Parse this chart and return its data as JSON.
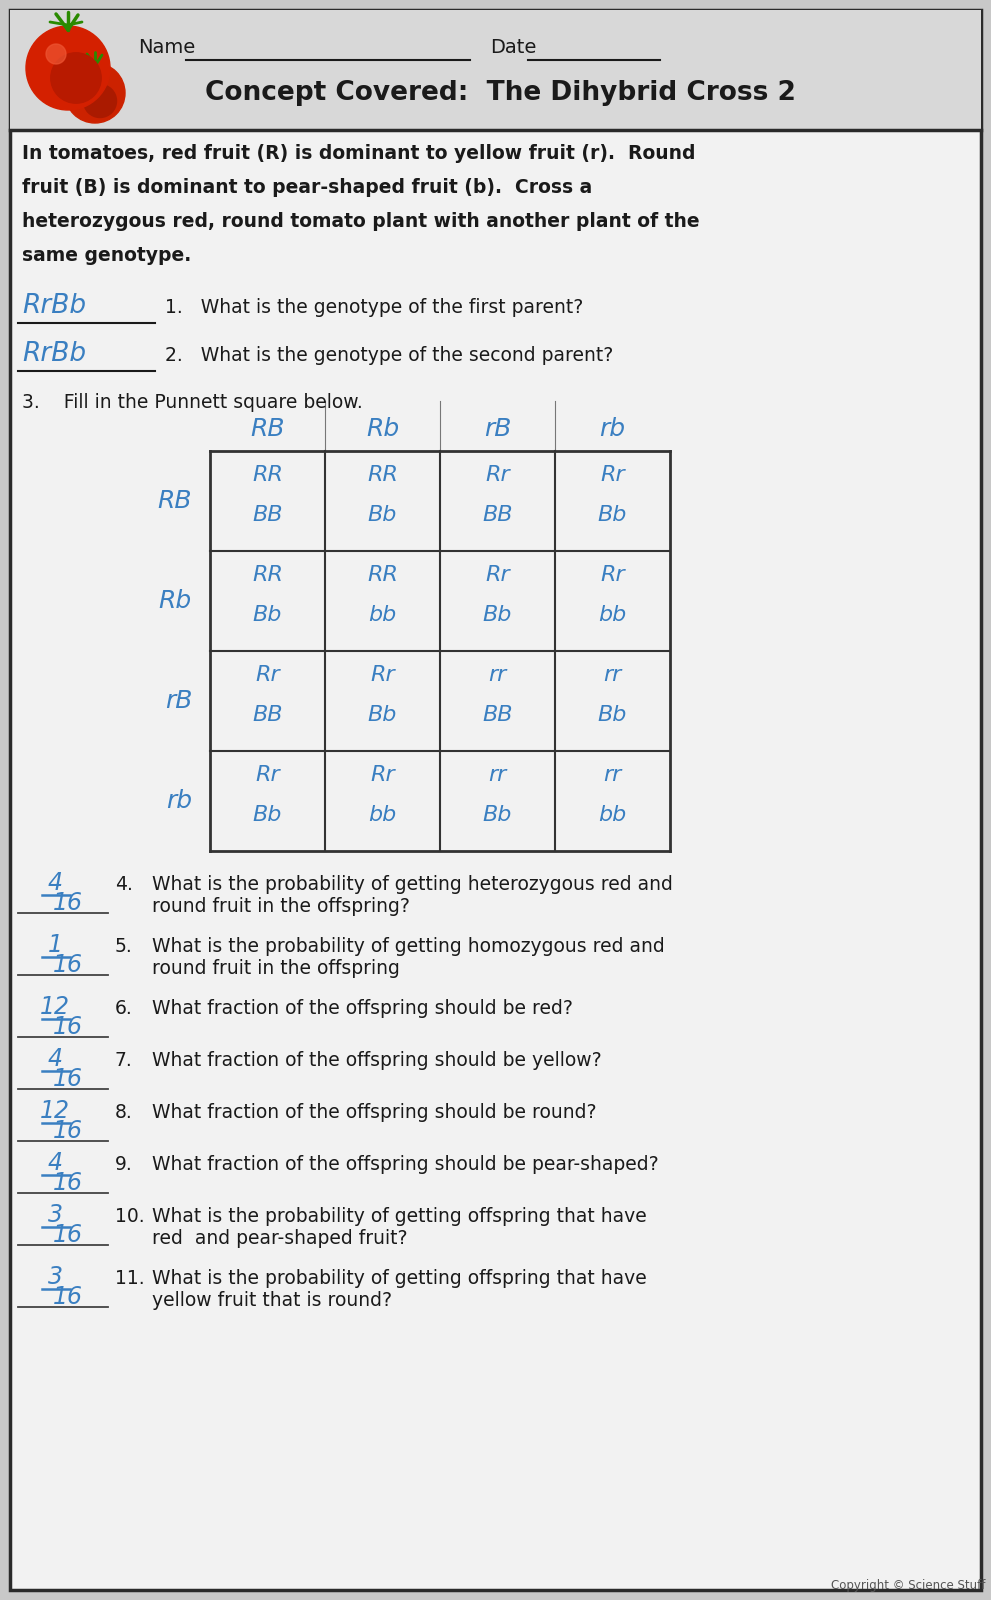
{
  "title": "Concept Covered:  The Dihybrid Cross 2",
  "bg_color": "#c8c8c8",
  "paper_color": "#f2f2f2",
  "header_bg": "#dcdcdc",
  "border_color": "#2a2a2a",
  "text_color": "#1a1a1a",
  "handwriting_color": "#3a7fc1",
  "intro_text_line1": "In tomatoes, red fruit (R) is dominant to yellow fruit (r).  Round",
  "intro_text_line2": "fruit (B) is dominant to pear-shaped fruit (b).  Cross a",
  "intro_text_line3": "heterozygous red, round tomato plant with another plant of the",
  "intro_text_line4": "same genotype.",
  "q1_answer": "RrBb",
  "q2_answer": "RrBb",
  "q1_text": "1.   What is the genotype of the first parent?",
  "q2_text": "2.   What is the genotype of the second parent?",
  "q3_text": "3.    Fill in the Punnett square below.",
  "col_headers": [
    "RB",
    "Rb",
    "rB",
    "rb"
  ],
  "row_headers": [
    "RB",
    "Rb",
    "rB",
    "rb"
  ],
  "punnett_cells": [
    [
      "RR\nBB",
      "RR\nBb",
      "Rr\nBB",
      "Rr\nBb"
    ],
    [
      "RR\nBb",
      "RR\nbb",
      "Rr\nBb",
      "Rr\nbb"
    ],
    [
      "Rr\nBB",
      "Rr\nBb",
      "rr\nBB",
      "rr\nBb"
    ],
    [
      "Rr\nBb",
      "Rr\nbb",
      "rr\nBb",
      "rr\nbb"
    ]
  ],
  "questions": [
    {
      "num": "4.",
      "answer": "4/16",
      "text": "What is the probability of getting heterozygous red and\nround fruit in the offspring?"
    },
    {
      "num": "5.",
      "answer": "1/16",
      "text": "What is the probability of getting homozygous red and\nround fruit in the offspring"
    },
    {
      "num": "6.",
      "answer": "12/16",
      "text": "What fraction of the offspring should be red?"
    },
    {
      "num": "7.",
      "answer": "4/16",
      "text": "What fraction of the offspring should be yellow?"
    },
    {
      "num": "8.",
      "answer": "12/16",
      "text": "What fraction of the offspring should be round?"
    },
    {
      "num": "9.",
      "answer": "4/16",
      "text": "What fraction of the offspring should be pear-shaped?"
    },
    {
      "num": "10.",
      "answer": "3/16",
      "text": "What is the probability of getting offspring that have\nred  and pear-shaped fruit?"
    },
    {
      "num": "11.",
      "answer": "3/16",
      "text": "What is the probability of getting offspring that have\nyellow fruit that is round?"
    }
  ],
  "copyright": "Copyright © Science Stuff"
}
